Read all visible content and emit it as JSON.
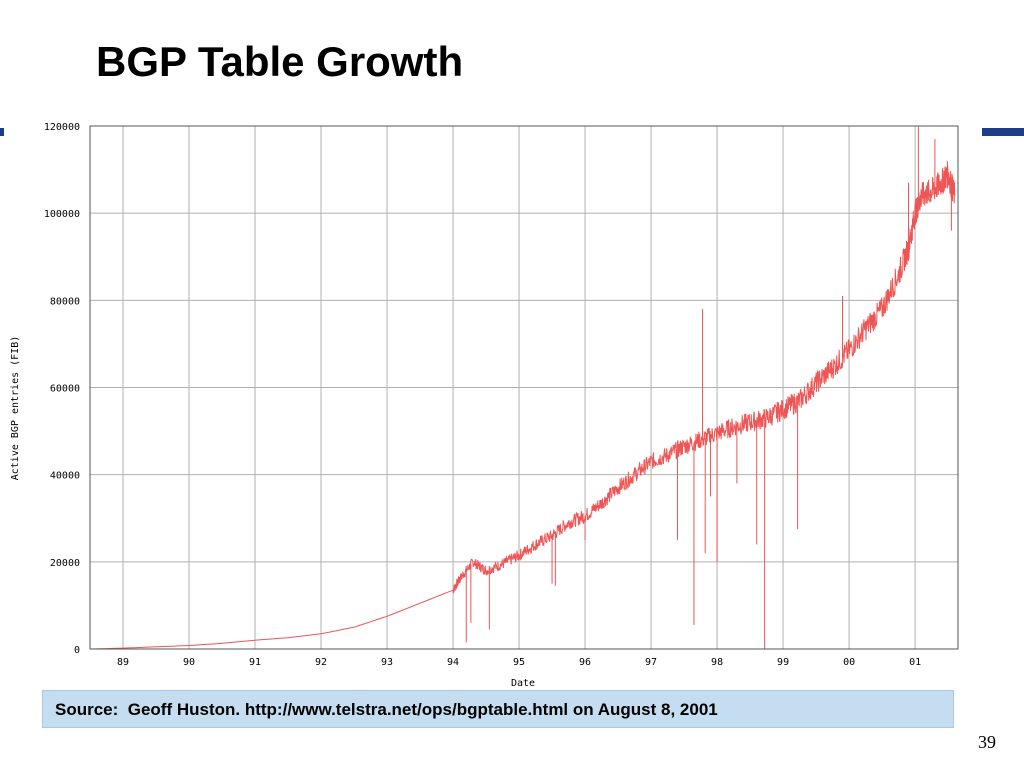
{
  "slide": {
    "title": "BGP Table Growth",
    "source": "Source:  Geoff Huston. http://www.telstra.net/ops/bgptable.html on August 8, 2001",
    "page_number": "39"
  },
  "colors": {
    "series": "#ee5555",
    "grid": "#b0b0b0",
    "accent": "#1f3c88",
    "source_bg": "#c5ddf0"
  },
  "chart_data": {
    "type": "line",
    "title": "",
    "xlabel": "Date",
    "ylabel": "Active BGP entries (FIB)",
    "xlim": [
      1988.5,
      2001.65
    ],
    "ylim": [
      0,
      120000
    ],
    "x_ticks": [
      "89",
      "90",
      "91",
      "92",
      "93",
      "94",
      "95",
      "96",
      "97",
      "98",
      "99",
      "00",
      "01"
    ],
    "x_tick_values": [
      1989,
      1990,
      1991,
      1992,
      1993,
      1994,
      1995,
      1996,
      1997,
      1998,
      1999,
      2000,
      2001
    ],
    "y_ticks": [
      "0",
      "20000",
      "40000",
      "60000",
      "80000",
      "100000",
      "120000"
    ],
    "y_tick_values": [
      0,
      20000,
      40000,
      60000,
      80000,
      100000,
      120000
    ],
    "grid": true,
    "legend": "none",
    "series": [
      {
        "x": [
          1988.5,
          1989.0,
          1989.5,
          1990.0,
          1990.5,
          1991.0,
          1991.5,
          1992.0,
          1992.5,
          1993.0,
          1993.5,
          1994.0,
          1994.1,
          1994.3,
          1994.5,
          1994.75,
          1995.0,
          1995.25,
          1995.5,
          1995.75,
          1996.0,
          1996.25,
          1996.5,
          1996.75,
          1997.0,
          1997.25,
          1997.5,
          1997.75,
          1998.0,
          1998.25,
          1998.5,
          1998.75,
          1999.0,
          1999.25,
          1999.5,
          1999.75,
          2000.0,
          2000.25,
          2000.5,
          2000.75,
          2000.9,
          2001.0,
          2001.1,
          2001.25,
          2001.4,
          2001.5,
          2001.6
        ],
        "y": [
          0,
          200,
          500,
          800,
          1300,
          2000,
          2600,
          3500,
          5000,
          7500,
          10500,
          13500,
          16000,
          20000,
          18000,
          19500,
          21500,
          24000,
          26000,
          29000,
          30500,
          33500,
          37000,
          40000,
          43000,
          44500,
          46500,
          48000,
          49500,
          51000,
          52000,
          53000,
          55000,
          57000,
          61000,
          64500,
          68500,
          73500,
          78000,
          86000,
          92000,
          100000,
          104000,
          105000,
          107000,
          109000,
          104000
        ]
      }
    ],
    "spikes": [
      {
        "x": 1994.2,
        "y": 1500
      },
      {
        "x": 1994.27,
        "y": 6000
      },
      {
        "x": 1994.55,
        "y": 4500
      },
      {
        "x": 1995.5,
        "y": 15000
      },
      {
        "x": 1995.55,
        "y": 14500
      },
      {
        "x": 1996.0,
        "y": 25000
      },
      {
        "x": 1997.4,
        "y": 25000
      },
      {
        "x": 1997.65,
        "y": 5500
      },
      {
        "x": 1997.78,
        "y": 78000
      },
      {
        "x": 1997.82,
        "y": 22000
      },
      {
        "x": 1997.9,
        "y": 35000
      },
      {
        "x": 1998.0,
        "y": 20000
      },
      {
        "x": 1998.3,
        "y": 38000
      },
      {
        "x": 1998.6,
        "y": 24000
      },
      {
        "x": 1998.72,
        "y": 0
      },
      {
        "x": 1999.22,
        "y": 27500
      },
      {
        "x": 1999.9,
        "y": 81000
      },
      {
        "x": 2000.9,
        "y": 107000
      },
      {
        "x": 2001.05,
        "y": 120000
      },
      {
        "x": 2001.3,
        "y": 117000
      },
      {
        "x": 2001.55,
        "y": 96000
      }
    ]
  }
}
